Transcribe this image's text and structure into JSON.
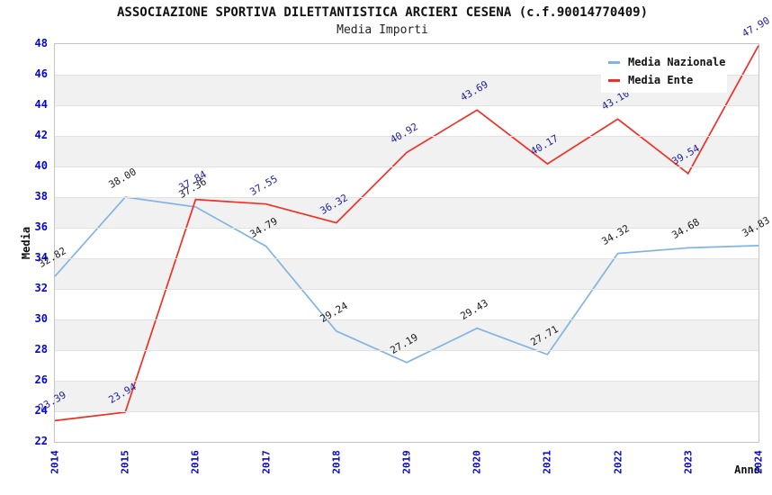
{
  "title": "ASSOCIAZIONE SPORTIVA DILETTANTISTICA ARCIERI CESENA (c.f.90014770409)",
  "subtitle": "Media Importi",
  "axes": {
    "ylabel": "Media",
    "xlabel": "Anno",
    "tick_color": "#0505cf"
  },
  "legend": {
    "position": "top-right"
  },
  "chart_data": {
    "type": "line",
    "title": "ASSOCIAZIONE SPORTIVA DILETTANTISTICA ARCIERI CESENA (c.f.90014770409)",
    "subtitle": "Media Importi",
    "xlabel": "Anno",
    "ylabel": "Media",
    "x": [
      2014,
      2015,
      2016,
      2017,
      2018,
      2019,
      2020,
      2021,
      2022,
      2023,
      2024
    ],
    "series": [
      {
        "name": "Media Nazionale",
        "color": "#82b4e3",
        "label_color": "#1b1b1b",
        "values": [
          32.82,
          38.0,
          37.36,
          34.79,
          29.24,
          27.19,
          29.43,
          27.71,
          34.32,
          34.68,
          34.83
        ]
      },
      {
        "name": "Media Ente",
        "color": "#f12f25",
        "label_color": "#1f1f9e",
        "values": [
          23.39,
          23.94,
          37.84,
          37.55,
          36.32,
          40.92,
          43.69,
          40.17,
          43.1,
          39.54,
          47.9
        ]
      }
    ],
    "ylim": [
      22,
      48
    ],
    "ytick_step": 2,
    "grid": true,
    "band_colors": [
      "#ffffff",
      "#f1f1f1"
    ],
    "legend_position": "top-right"
  }
}
